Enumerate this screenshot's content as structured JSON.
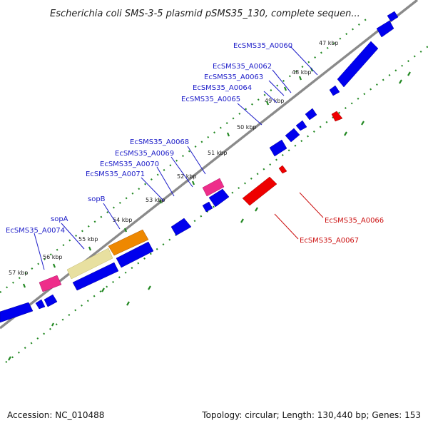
{
  "title": "Escherichia coli SMS-3-5 plasmid pSMS35_130, complete sequen...",
  "footer": {
    "accession": "Accession: NC_010488",
    "summary": "Topology: circular; Length: 130,440 bp; Genes: 153"
  },
  "colors": {
    "backbone": "#7f7f7f",
    "gene_forward": "#0000ee",
    "gene_reverse": "#ee0000",
    "label_forward": "#1c1cc8",
    "label_reverse": "#cc1111",
    "pseudogene_pink": "#ee2d8a",
    "orange": "#ee8800",
    "khaki": "#e8e0a0",
    "tick_green": "#228822"
  },
  "kbp_ticks": [
    "47 kbp",
    "48 kbp",
    "49 kbp",
    "50 kbp",
    "51 kbp",
    "52 kbp",
    "53 kbp",
    "54 kbp",
    "55 kbp",
    "56 kbp",
    "57 kbp"
  ],
  "gene_labels": [
    {
      "text": "EcSMS35_A0060",
      "strand": "forward"
    },
    {
      "text": "EcSMS35_A0062",
      "strand": "forward"
    },
    {
      "text": "EcSMS35_A0063",
      "strand": "forward"
    },
    {
      "text": "EcSMS35_A0064",
      "strand": "forward"
    },
    {
      "text": "EcSMS35_A0065",
      "strand": "forward"
    },
    {
      "text": "EcSMS35_A0068",
      "strand": "forward"
    },
    {
      "text": "EcSMS35_A0069",
      "strand": "forward"
    },
    {
      "text": "EcSMS35_A0070",
      "strand": "forward"
    },
    {
      "text": "EcSMS35_A0071",
      "strand": "forward"
    },
    {
      "text": "sopB",
      "strand": "forward"
    },
    {
      "text": "sopA",
      "strand": "forward"
    },
    {
      "text": "EcSMS35_A0074",
      "strand": "forward"
    },
    {
      "text": "EcSMS35_A0066",
      "strand": "reverse"
    },
    {
      "text": "EcSMS35_A0067",
      "strand": "reverse"
    }
  ]
}
